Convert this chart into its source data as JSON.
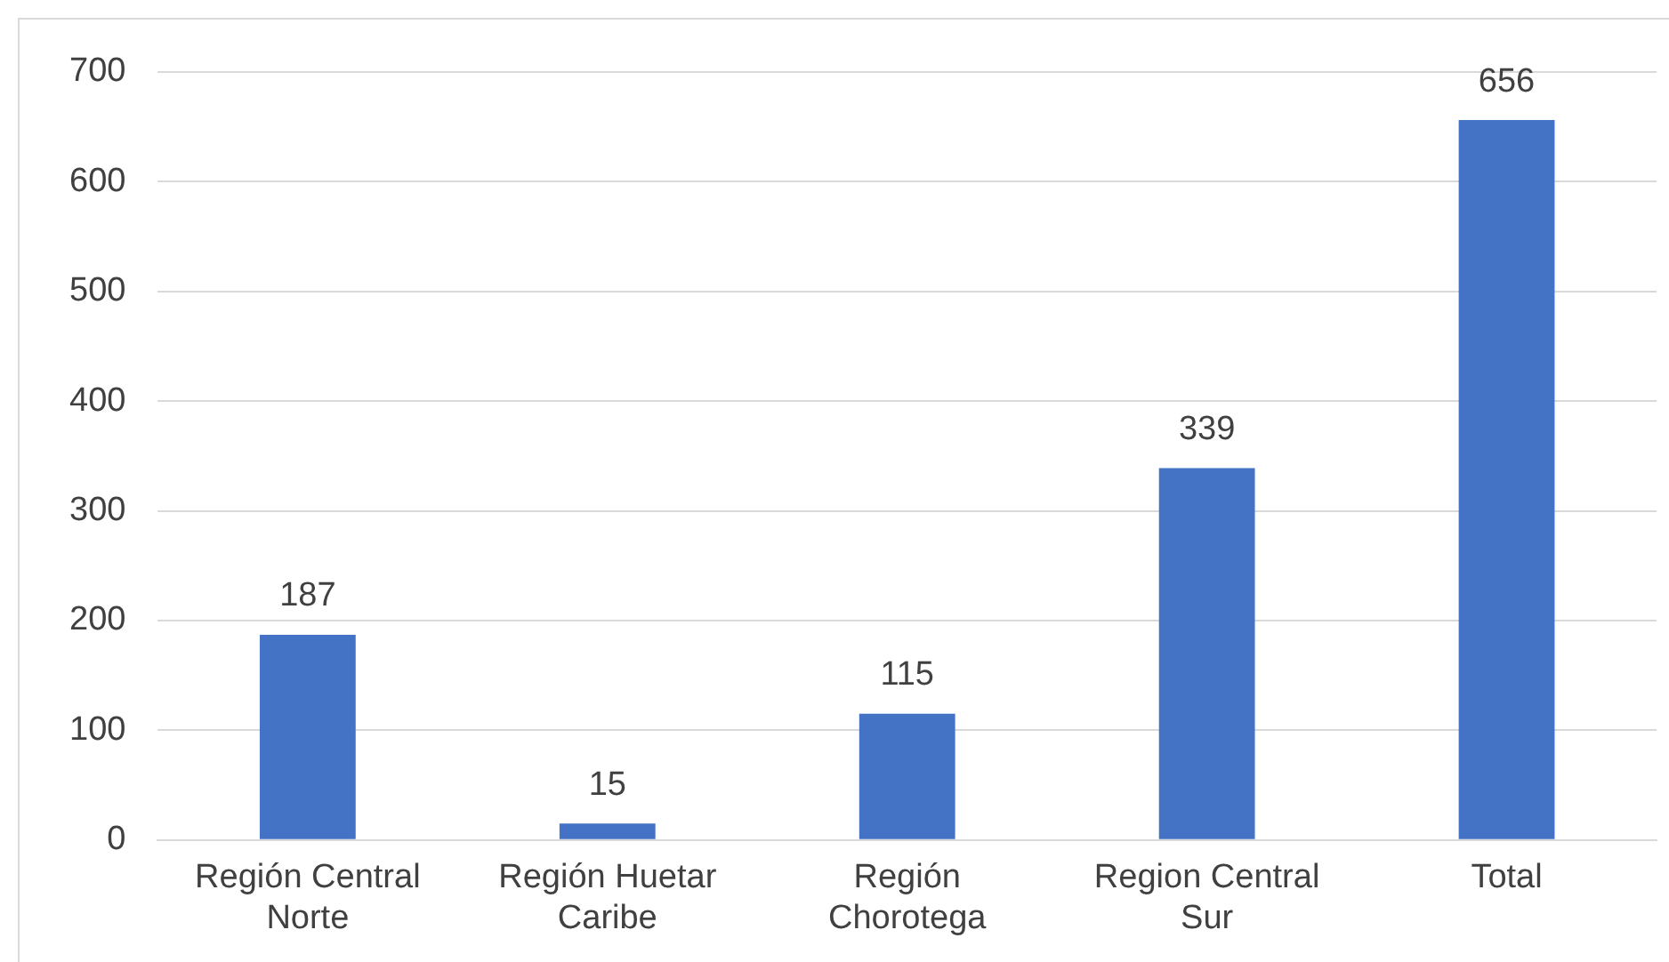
{
  "chart_data": {
    "type": "bar",
    "categories": [
      "Región Central Norte",
      "Región Huetar Caribe",
      "Región Chorotega",
      "Region Central Sur",
      "Total"
    ],
    "values": [
      187,
      15,
      115,
      339,
      656
    ],
    "color": "#4472c4",
    "ylim": [
      0,
      700
    ],
    "yticks": [
      0,
      100,
      200,
      300,
      400,
      500,
      600,
      700
    ],
    "grid": "y",
    "data_labels": true,
    "legend": false
  }
}
